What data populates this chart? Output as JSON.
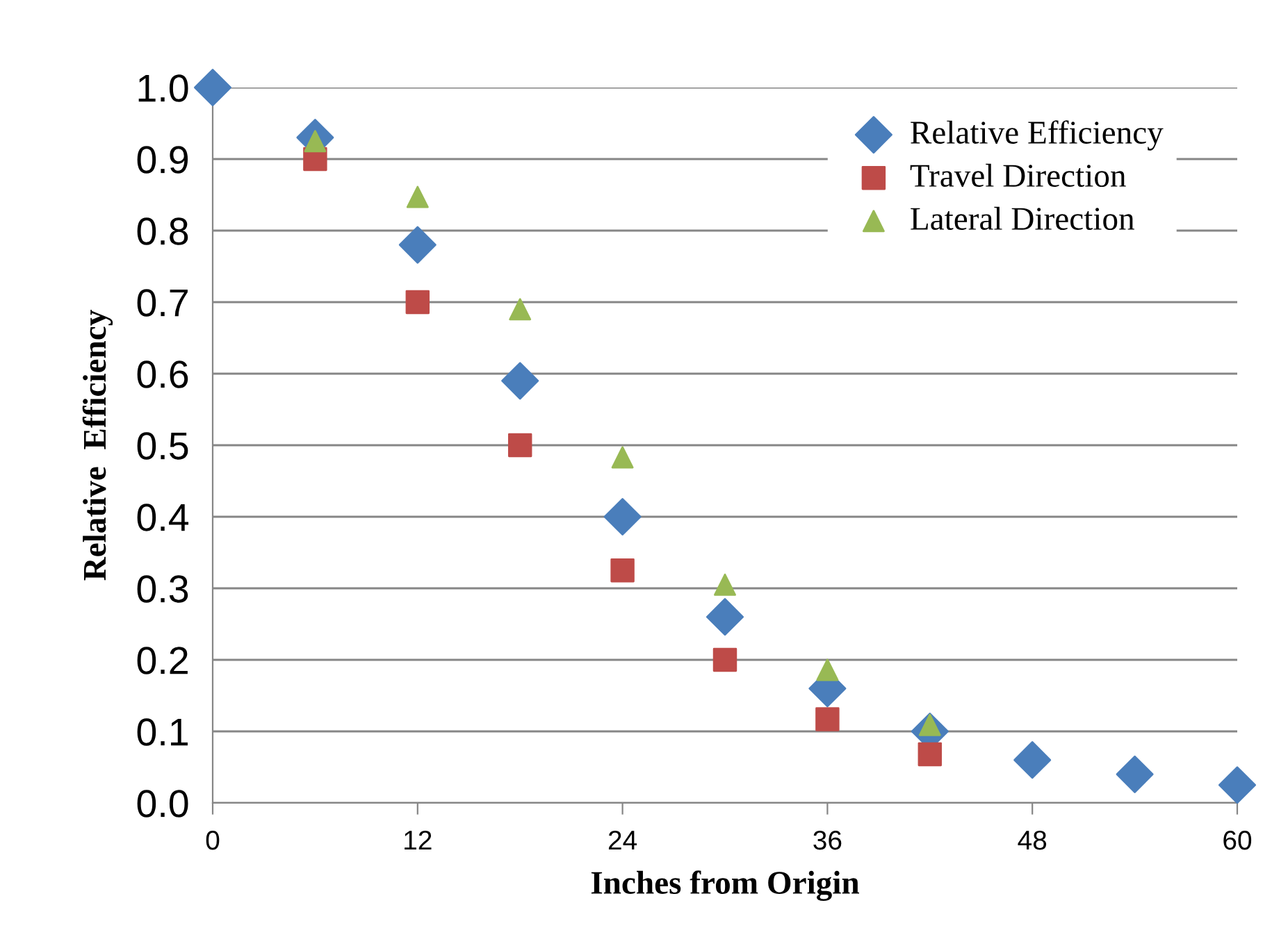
{
  "chart_data": {
    "type": "scatter",
    "xlabel": "Inches from Origin",
    "ylabel": "Relative  Efficiency",
    "xlim": [
      0,
      60
    ],
    "xticks": [
      0,
      12,
      24,
      36,
      48,
      60
    ],
    "ylim": [
      0,
      1.0
    ],
    "yticks": [
      {
        "value": 0,
        "label": "0.0"
      },
      0.1,
      0.2,
      0.3,
      0.4,
      0.5,
      0.6,
      0.7,
      0.8,
      0.9,
      {
        "value": 1.0,
        "label": "1.0"
      }
    ],
    "grid": "y",
    "legend": "top right",
    "series": [
      {
        "name": "Relative Efficiency",
        "color": "#4a7ebb",
        "marker": "diamond",
        "x": [
          0,
          6,
          12,
          18,
          24,
          30,
          36,
          42,
          48,
          54,
          60
        ],
        "values": [
          1.0,
          0.93,
          0.78,
          0.59,
          0.4,
          0.26,
          0.16,
          0.1,
          0.06,
          0.04,
          0.025
        ]
      },
      {
        "name": "Travel Direction",
        "color": "#be4b48",
        "marker": "square",
        "x": [
          6,
          12,
          18,
          24,
          30,
          36,
          42
        ],
        "values": [
          0.9,
          0.7,
          0.5,
          0.325,
          0.2,
          0.117,
          0.068
        ]
      },
      {
        "name": "Lateral Direction",
        "color": "#98b954",
        "marker": "triangle",
        "x": [
          6,
          12,
          18,
          24,
          30,
          36,
          42
        ],
        "values": [
          0.925,
          0.847,
          0.69,
          0.483,
          0.305,
          0.186,
          0.109
        ]
      }
    ]
  }
}
